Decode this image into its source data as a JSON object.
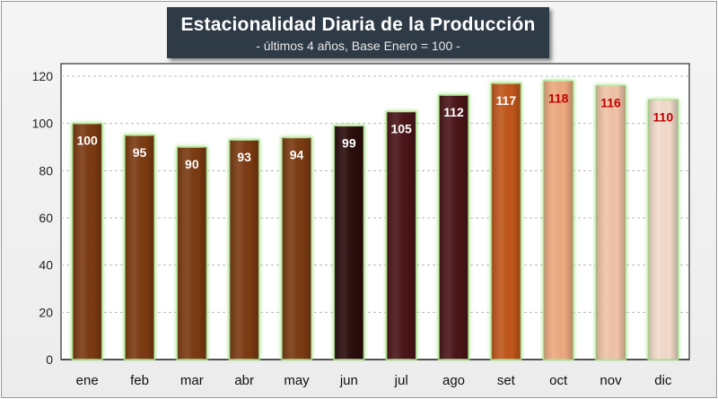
{
  "chart_data": {
    "type": "bar",
    "title": "Estacionalidad Diaria de la Producción",
    "subtitle": "- últimos 4 años, Base Enero = 100 -",
    "categories": [
      "ene",
      "feb",
      "mar",
      "abr",
      "may",
      "jun",
      "jul",
      "ago",
      "set",
      "oct",
      "nov",
      "dic"
    ],
    "values": [
      100,
      95,
      90,
      93,
      94,
      99,
      105,
      112,
      117,
      118,
      116,
      110
    ],
    "data_labels": [
      "100",
      "95",
      "90",
      "93",
      "94",
      "99",
      "105",
      "112",
      "117",
      "118",
      "116",
      "110"
    ],
    "bar_colors": [
      "#7b3a11",
      "#7b3a11",
      "#7b3a11",
      "#7b3a11",
      "#7b3a11",
      "#2a0c0c",
      "#4a1418",
      "#4a1418",
      "#c0561a",
      "#eeaa80",
      "#f2c4a8",
      "#f4dccc"
    ],
    "label_colors": [
      "#ffffff",
      "#ffffff",
      "#ffffff",
      "#ffffff",
      "#ffffff",
      "#ffffff",
      "#ffffff",
      "#ffffff",
      "#ffffff",
      "#c00000",
      "#c00000",
      "#c00000"
    ],
    "yticks": [
      "0",
      "20",
      "40",
      "60",
      "80",
      "100",
      "120"
    ],
    "ylim": [
      0,
      120
    ],
    "xlabel": "",
    "ylabel": "",
    "grid": true,
    "legend": "none"
  }
}
